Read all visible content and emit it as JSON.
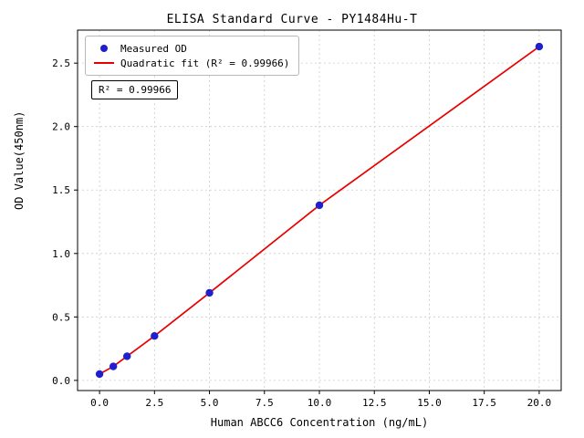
{
  "chart_data": {
    "type": "scatter",
    "title": "ELISA Standard Curve - PY1484Hu-T",
    "xlabel": "Human ABCC6 Concentration (ng/mL)",
    "ylabel": "OD Value(450nm)",
    "series": [
      {
        "name": "Measured OD",
        "x": [
          0,
          0.625,
          1.25,
          2.5,
          5,
          10,
          20
        ],
        "y": [
          0.05,
          0.11,
          0.19,
          0.35,
          0.69,
          1.38,
          2.63
        ]
      }
    ],
    "fit": {
      "name": "Quadratic fit (R² = 0.99966)",
      "type": "quadratic",
      "r_squared": "0.99966"
    },
    "annotation": "R² = 0.99966",
    "legend": [
      {
        "label": "Measured OD",
        "marker": "dot"
      },
      {
        "label": "Quadratic fit (R² = 0.99966)",
        "marker": "line"
      }
    ],
    "xlim": [
      -1,
      21
    ],
    "ylim": [
      -0.08,
      2.76
    ],
    "xticks": [
      0.0,
      2.5,
      5.0,
      7.5,
      10.0,
      12.5,
      15.0,
      17.5,
      20.0
    ],
    "yticks": [
      0.0,
      0.5,
      1.0,
      1.5,
      2.0,
      2.5
    ],
    "grid": true,
    "legend_position": "upper-left",
    "colors": {
      "points": "#1f1fcd",
      "fit_line": "#e80000",
      "grid": "#cccccc",
      "axis": "#000000"
    }
  }
}
